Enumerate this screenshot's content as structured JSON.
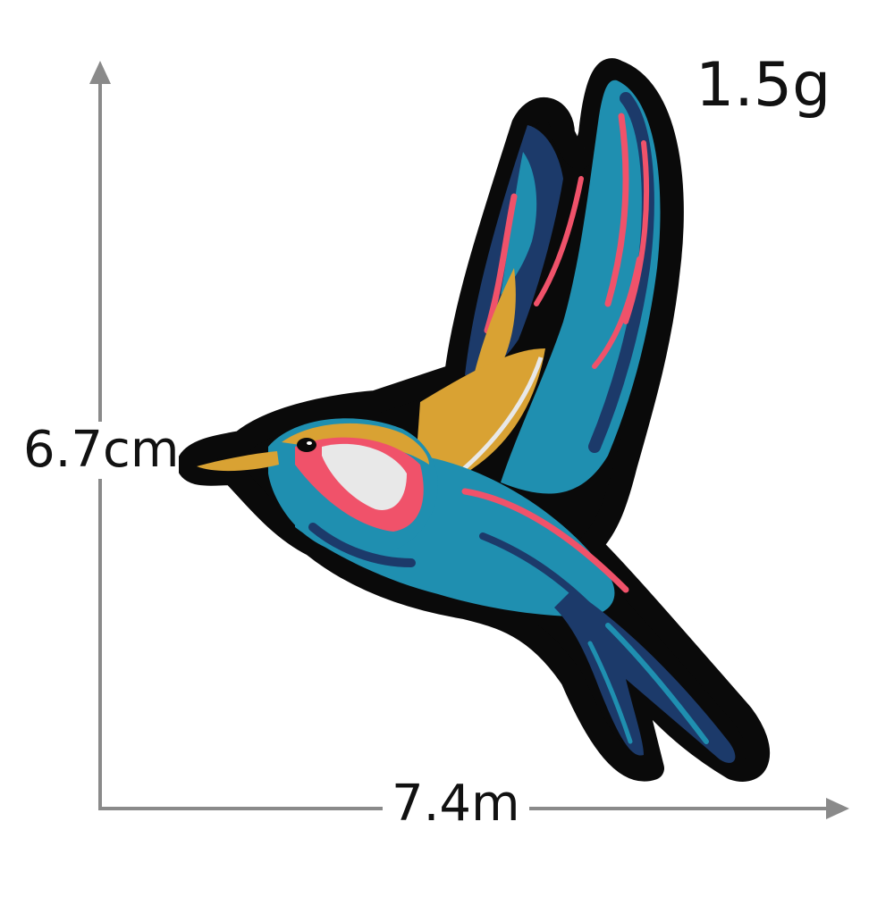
{
  "product": {
    "weight": "1.5g",
    "height": "6.7cm",
    "width": "7.4m"
  },
  "colors": {
    "background": "#ffffff",
    "arrow": "#8a8a8a",
    "outline": "#0a0a0a",
    "teal": "#1f8fb0",
    "navy": "#1c3a6a",
    "gold": "#d9a233",
    "pink": "#f0526a",
    "white": "#e8e8e8"
  },
  "icons": [
    "vertical-arrow-icon",
    "horizontal-arrow-icon",
    "hummingbird-patch-icon"
  ]
}
